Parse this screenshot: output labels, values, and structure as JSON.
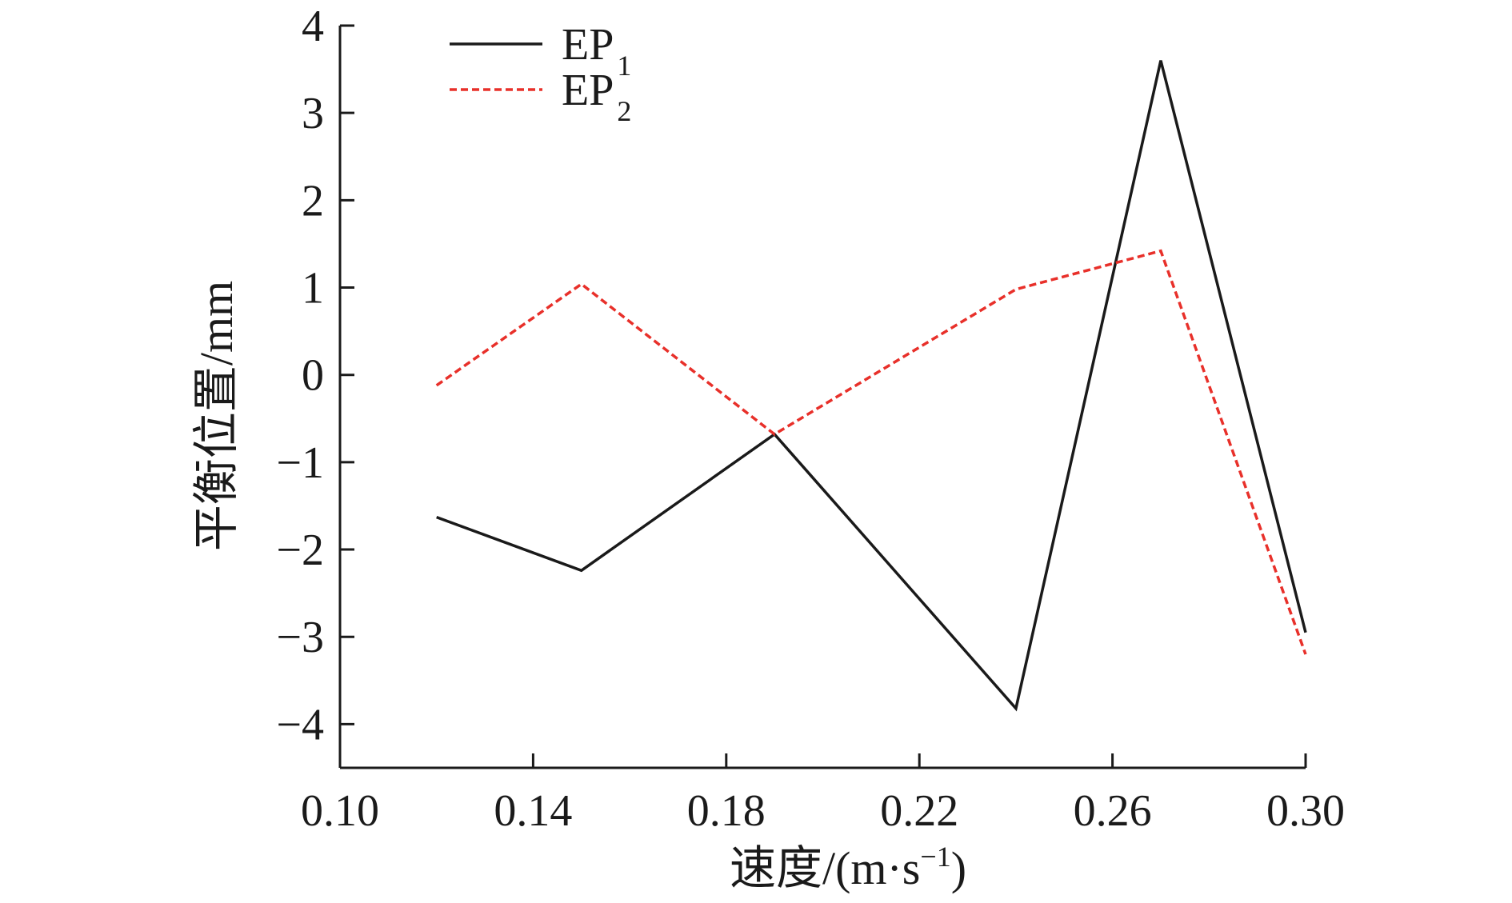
{
  "chart_data": {
    "type": "line",
    "xlabel": "速度/(m·s",
    "xlabel_sup": "−1",
    "xlabel_close": ")",
    "ylabel": "平衡位置/mm",
    "xlim": [
      0.1,
      0.3
    ],
    "ylim": [
      -4.5,
      4
    ],
    "xticks": [
      0.1,
      0.14,
      0.18,
      0.22,
      0.26,
      0.3
    ],
    "xtick_labels": [
      "0.10",
      "0.14",
      "0.18",
      "0.22",
      "0.26",
      "0.30"
    ],
    "yticks": [
      4,
      3,
      2,
      1,
      0,
      -1,
      -2,
      -3,
      -4
    ],
    "ytick_labels": [
      "4",
      "3",
      "2",
      "1",
      "0",
      "−1",
      "−2",
      "−3",
      "−4"
    ],
    "grid": false,
    "legend_position": "top-left",
    "x": [
      0.12,
      0.15,
      0.19,
      0.24,
      0.27,
      0.3
    ],
    "series": [
      {
        "name": "EP",
        "sub": "1",
        "color": "#1a1a1a",
        "dash": "solid",
        "values": [
          -1.63,
          -2.24,
          -0.68,
          -3.82,
          3.6,
          -2.95
        ]
      },
      {
        "name": "EP",
        "sub": "2",
        "color": "#e8302a",
        "dash": "dashed",
        "values": [
          -0.12,
          1.04,
          -0.68,
          0.98,
          1.42,
          -3.2
        ]
      }
    ]
  }
}
